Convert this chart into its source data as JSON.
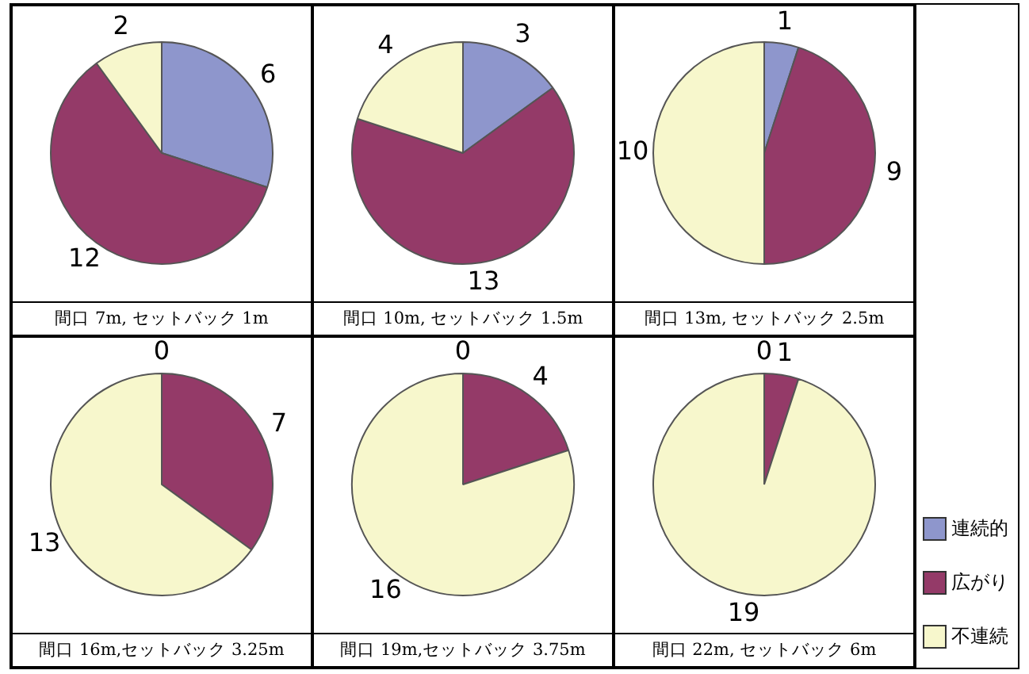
{
  "chart_data": [
    {
      "type": "pie",
      "title": "間口 7m, セットバック 1m",
      "categories": [
        "連続的",
        "広がり",
        "不連続"
      ],
      "values": [
        6,
        12,
        2
      ],
      "colors": [
        "#8e96cc",
        "#943a68",
        "#f7f7cc"
      ],
      "value_labels": [
        "6",
        "12",
        "2"
      ],
      "legend": "bottom right"
    },
    {
      "type": "pie",
      "title": "間口 10m, セットバック 1.5m",
      "categories": [
        null,
        null,
        null
      ],
      "values": [
        3,
        13,
        4
      ],
      "colors": [
        "#8e96cc",
        "#943a68",
        "#f7f7cc"
      ],
      "value_labels": [
        "3",
        "13",
        "4"
      ]
    },
    {
      "type": "pie",
      "title": "間口 13m, セットバック 2.5m",
      "categories": [
        null,
        null,
        null
      ],
      "values": [
        1,
        9,
        10
      ],
      "colors": [
        "#8e96cc",
        "#943a68",
        "#f7f7cc"
      ],
      "value_labels": [
        "1",
        "9",
        "10"
      ]
    },
    {
      "type": "pie",
      "title": "間口 16m,セットバック 3.25m",
      "categories": [
        null,
        null,
        null
      ],
      "values": [
        0,
        7,
        13
      ],
      "colors": [
        "#8e96cc",
        "#943a68",
        "#f7f7cc"
      ],
      "value_labels": [
        "0",
        "7",
        "13"
      ]
    },
    {
      "type": "pie",
      "title": "間口 19m,セットバック 3.75m",
      "categories": [
        null,
        null,
        null
      ],
      "values": [
        0,
        4,
        16
      ],
      "colors": [
        "#8e96cc",
        "#943a68",
        "#f7f7cc"
      ],
      "value_labels": [
        "0",
        "4",
        "16"
      ]
    },
    {
      "type": "pie",
      "title": "間口 22m, セットバック 6m",
      "categories": [
        null,
        null,
        null
      ],
      "values": [
        0,
        1,
        19
      ],
      "colors": [
        "#8e96cc",
        "#943a68",
        "#f7f7cc"
      ],
      "value_labels": [
        "0",
        "1",
        "19"
      ]
    }
  ]
}
